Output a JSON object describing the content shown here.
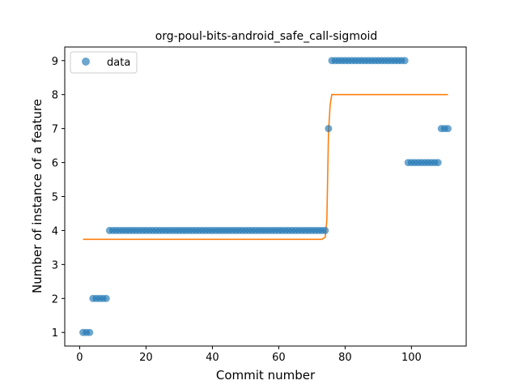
{
  "chart_data": {
    "type": "scatter",
    "title": "org-poul-bits-android_safe_call-sigmoid",
    "xlabel": "Commit number",
    "ylabel": "Number of instance of a feature",
    "xlim": [
      -4.5,
      116.5
    ],
    "ylim": [
      0.6,
      9.4
    ],
    "xticks": [
      0,
      20,
      40,
      60,
      80,
      100
    ],
    "yticks": [
      1,
      2,
      3,
      4,
      5,
      6,
      7,
      8,
      9
    ],
    "legend": {
      "position": "top-left",
      "entries": [
        "data"
      ]
    },
    "colors": {
      "data": "#1f77b4",
      "fit": "#ff7f0e"
    },
    "series": [
      {
        "name": "data",
        "kind": "scatter",
        "x": [
          1,
          2,
          3,
          4,
          5,
          6,
          7,
          8,
          9,
          10,
          11,
          12,
          13,
          14,
          15,
          16,
          17,
          18,
          19,
          20,
          21,
          22,
          23,
          24,
          25,
          26,
          27,
          28,
          29,
          30,
          31,
          32,
          33,
          34,
          35,
          36,
          37,
          38,
          39,
          40,
          41,
          42,
          43,
          44,
          45,
          46,
          47,
          48,
          49,
          50,
          51,
          52,
          53,
          54,
          55,
          56,
          57,
          58,
          59,
          60,
          61,
          62,
          63,
          64,
          65,
          66,
          67,
          68,
          69,
          70,
          71,
          72,
          73,
          74,
          75,
          76,
          77,
          78,
          79,
          80,
          81,
          82,
          83,
          84,
          85,
          86,
          87,
          88,
          89,
          90,
          91,
          92,
          93,
          94,
          95,
          96,
          97,
          98,
          99,
          100,
          101,
          102,
          103,
          104,
          105,
          106,
          107,
          108,
          109,
          110,
          111
        ],
        "y": [
          1,
          1,
          1,
          2,
          2,
          2,
          2,
          2,
          4,
          4,
          4,
          4,
          4,
          4,
          4,
          4,
          4,
          4,
          4,
          4,
          4,
          4,
          4,
          4,
          4,
          4,
          4,
          4,
          4,
          4,
          4,
          4,
          4,
          4,
          4,
          4,
          4,
          4,
          4,
          4,
          4,
          4,
          4,
          4,
          4,
          4,
          4,
          4,
          4,
          4,
          4,
          4,
          4,
          4,
          4,
          4,
          4,
          4,
          4,
          4,
          4,
          4,
          4,
          4,
          4,
          4,
          4,
          4,
          4,
          4,
          4,
          4,
          4,
          4,
          7,
          9,
          9,
          9,
          9,
          9,
          9,
          9,
          9,
          9,
          9,
          9,
          9,
          9,
          9,
          9,
          9,
          9,
          9,
          9,
          9,
          9,
          9,
          9,
          6,
          6,
          6,
          6,
          6,
          6,
          6,
          6,
          6,
          6,
          7,
          7,
          7
        ]
      },
      {
        "name": "",
        "kind": "line",
        "x": [
          1,
          73,
          74,
          74.5,
          75,
          75.5,
          76,
          111
        ],
        "y": [
          3.74,
          3.74,
          3.8,
          4.3,
          6.9,
          7.7,
          8.0,
          8.0
        ]
      }
    ]
  }
}
